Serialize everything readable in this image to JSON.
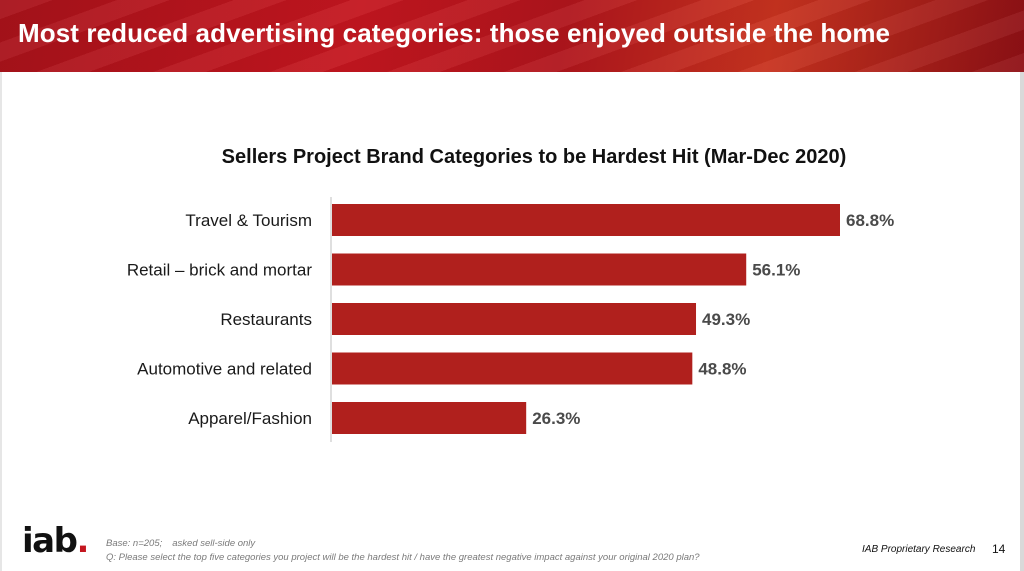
{
  "slide": {
    "title": "Most reduced advertising categories: those enjoyed outside the home",
    "page_number": "14"
  },
  "colors": {
    "header_red": "#b5151c",
    "bar_red": "#b0201d"
  },
  "chart_data": {
    "type": "bar",
    "orientation": "horizontal",
    "title": "Sellers Project Brand Categories to be Hardest Hit (Mar-Dec 2020)",
    "categories": [
      "Travel & Tourism",
      "Retail – brick and mortar",
      "Restaurants",
      "Automotive and related",
      "Apparel/Fashion"
    ],
    "values": [
      68.8,
      56.1,
      49.3,
      48.8,
      26.3
    ],
    "value_labels": [
      "68.8%",
      "56.1%",
      "49.3%",
      "48.8%",
      "26.3%"
    ],
    "unit": "%",
    "xlabel": "",
    "ylabel": "",
    "grid": false,
    "legend": "none"
  },
  "footer": {
    "logo_text": "iab",
    "logo_dot": ".",
    "base_prefix": "Base: n=205;",
    "base_suffix": "asked sell-side only",
    "question": "Q: Please select the top five categories you project will be the hardest hit / have the greatest negative impact against your original 2020 plan?",
    "brand_note": "IAB Proprietary Research"
  }
}
